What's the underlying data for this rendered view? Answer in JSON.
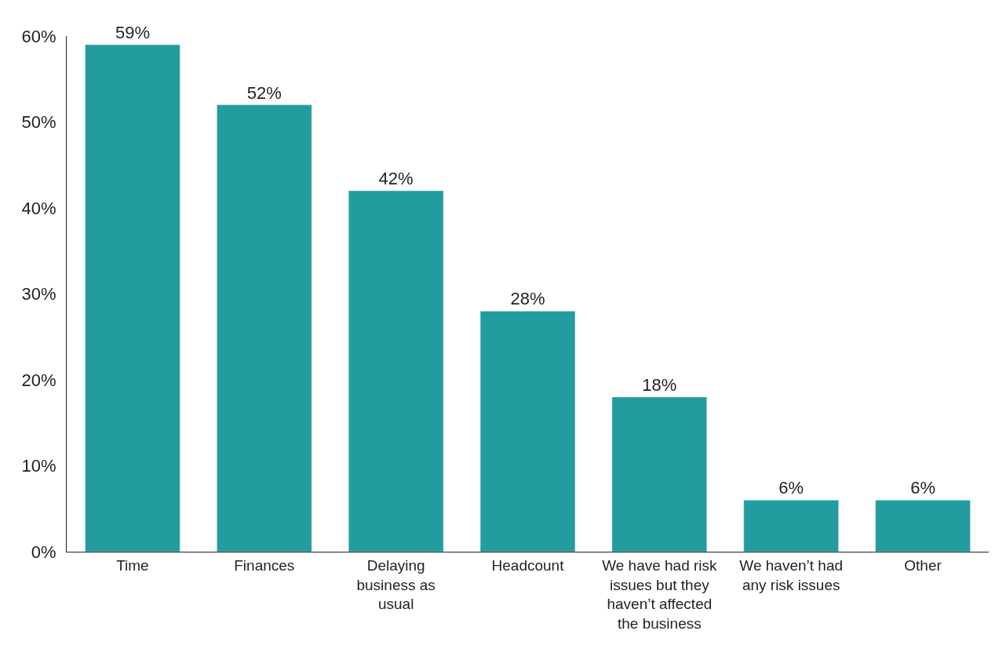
{
  "chart_data": {
    "type": "bar",
    "categories": [
      "Time",
      "Finances",
      "Delaying business as usual",
      "Headcount",
      "We have had risk issues but they haven’t affected the business",
      "We haven’t had any risk issues",
      "Other"
    ],
    "values": [
      59,
      52,
      42,
      28,
      18,
      6,
      6
    ],
    "value_labels": [
      "59%",
      "52%",
      "42%",
      "28%",
      "18%",
      "6%",
      "6%"
    ],
    "color": "#229c9f",
    "ylim": [
      0,
      60
    ],
    "yticks": [
      {
        "value": 0,
        "label": "0%"
      },
      {
        "value": 10,
        "label": "10%"
      },
      {
        "value": 20,
        "label": "20%"
      },
      {
        "value": 30,
        "label": "30%"
      },
      {
        "value": 40,
        "label": "40%"
      },
      {
        "value": 50,
        "label": "50%"
      },
      {
        "value": 60,
        "label": "60%"
      }
    ],
    "legend": false
  }
}
